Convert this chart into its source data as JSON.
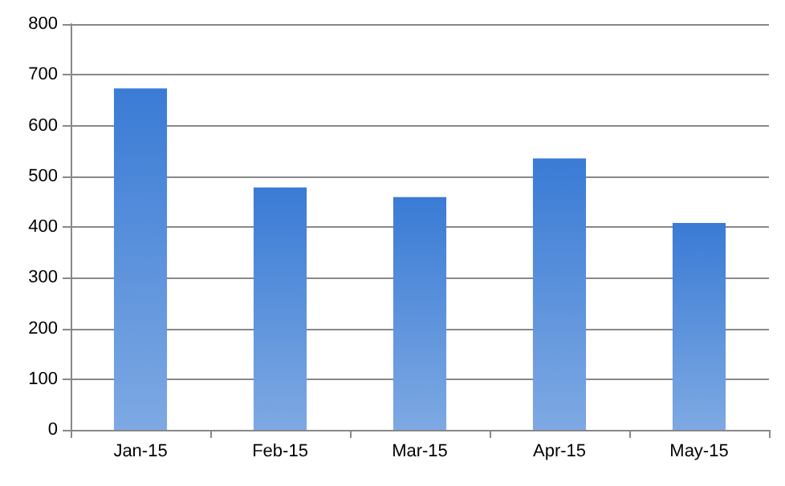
{
  "chart_data": {
    "type": "bar",
    "categories": [
      "Jan-15",
      "Feb-15",
      "Mar-15",
      "Apr-15",
      "May-15"
    ],
    "values": [
      673,
      478,
      459,
      535,
      408
    ],
    "color": "#3a7bd5",
    "ylim": [
      0,
      800
    ],
    "yticks": [
      0,
      100,
      200,
      300,
      400,
      500,
      600,
      700,
      800
    ],
    "grid": "y"
  }
}
